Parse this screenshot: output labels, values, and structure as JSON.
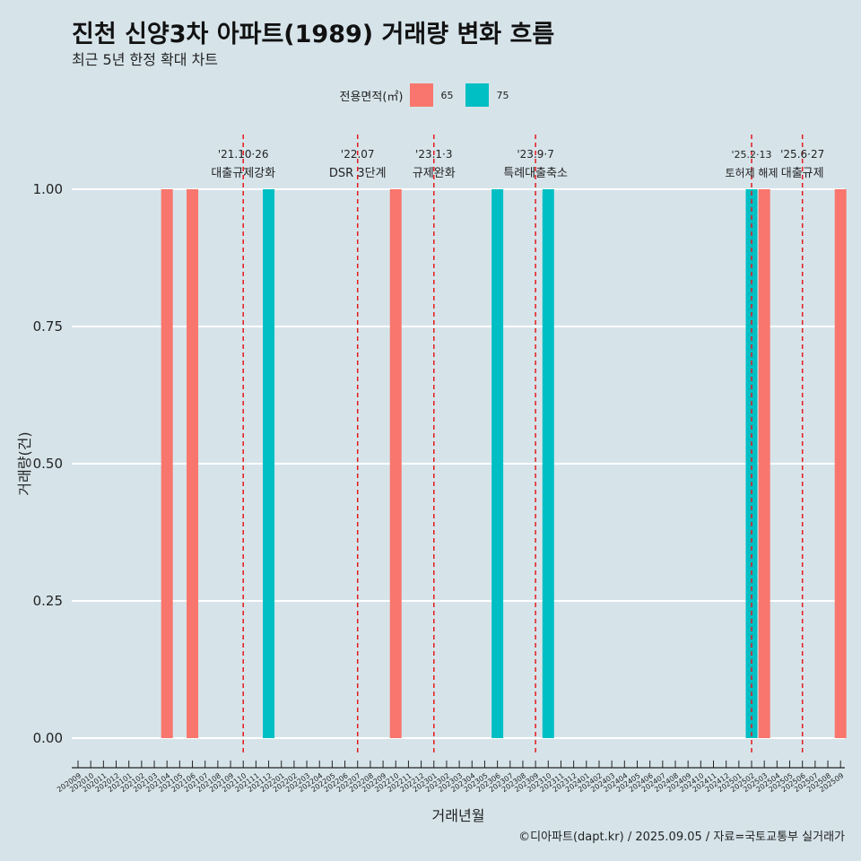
{
  "header": {
    "title": "진천 신양3차 아파트(1989) 거래량 변화 흐름",
    "subtitle": "최근 5년 한정 확대 차트"
  },
  "legend": {
    "title": "전용면적(㎡)",
    "items": [
      {
        "label": "65",
        "color": "#f8766d"
      },
      {
        "label": "75",
        "color": "#00bfc4"
      }
    ]
  },
  "caption": "©디아파트(dapt.kr) / 2025.09.05 / 자료=국토교통부 실거래가",
  "chart_data": {
    "type": "bar",
    "xlabel": "거래년월",
    "ylabel": "거래량(건)",
    "ylim": [
      0,
      1
    ],
    "yticks": [
      "0.00",
      "0.25",
      "0.50",
      "0.75",
      "1.00"
    ],
    "categories": [
      "202009",
      "202010",
      "202011",
      "202012",
      "202101",
      "202102",
      "202103",
      "202104",
      "202105",
      "202106",
      "202107",
      "202108",
      "202109",
      "202110",
      "202111",
      "202112",
      "202201",
      "202202",
      "202203",
      "202204",
      "202205",
      "202206",
      "202207",
      "202208",
      "202209",
      "202210",
      "202211",
      "202212",
      "202301",
      "202302",
      "202303",
      "202304",
      "202305",
      "202306",
      "202307",
      "202308",
      "202309",
      "202310",
      "202311",
      "202312",
      "202401",
      "202402",
      "202403",
      "202404",
      "202405",
      "202406",
      "202407",
      "202408",
      "202409",
      "202410",
      "202411",
      "202412",
      "202501",
      "202502",
      "202503",
      "202504",
      "202505",
      "202506",
      "202507",
      "202508",
      "202509"
    ],
    "series": [
      {
        "name": "65",
        "color": "#f8766d",
        "points": [
          {
            "x": "202104",
            "y": 1
          },
          {
            "x": "202106",
            "y": 1
          },
          {
            "x": "202210",
            "y": 1
          },
          {
            "x": "202503",
            "y": 1
          },
          {
            "x": "202509",
            "y": 1
          }
        ]
      },
      {
        "name": "75",
        "color": "#00bfc4",
        "points": [
          {
            "x": "202112",
            "y": 1
          },
          {
            "x": "202306",
            "y": 1
          },
          {
            "x": "202310",
            "y": 1
          },
          {
            "x": "202502",
            "y": 1
          }
        ]
      }
    ],
    "annotations": [
      {
        "x": "202110",
        "date": "'21.10·26",
        "label": "대출규제강화"
      },
      {
        "x": "202207",
        "date": "'22.07",
        "label": "DSR 3단계"
      },
      {
        "x": "202301",
        "date": "'23.1·3",
        "label": "규제완화"
      },
      {
        "x": "202309",
        "date": "'23.9·7",
        "label": "특례대출축소"
      },
      {
        "x": "202502",
        "date": "'25.2·13",
        "label": "토허제 해제"
      },
      {
        "x": "202506",
        "date": "'25.6·27",
        "label": "대출규제"
      }
    ]
  }
}
